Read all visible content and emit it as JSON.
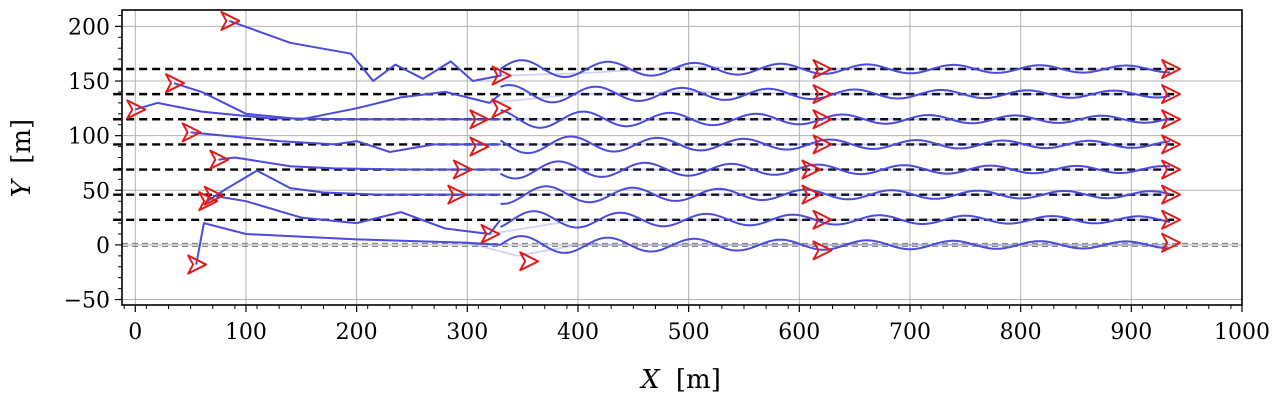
{
  "chart_data": {
    "type": "line",
    "title": "",
    "xlabel_var": "X",
    "xlabel_unit": "[m]",
    "ylabel_var": "Y",
    "ylabel_unit": "[m]",
    "xlim": [
      -12,
      1000
    ],
    "ylim": [
      -55,
      215
    ],
    "xticks": [
      0,
      100,
      200,
      300,
      400,
      500,
      600,
      700,
      800,
      900,
      1000
    ],
    "yticks": [
      -50,
      0,
      50,
      100,
      150,
      200
    ],
    "xtick_labels": [
      "0",
      "100",
      "200",
      "300",
      "400",
      "500",
      "600",
      "700",
      "800",
      "900",
      "1000"
    ],
    "ytick_labels": [
      "−50",
      "0",
      "50",
      "100",
      "150",
      "200"
    ],
    "grid": true,
    "colors": {
      "trajectory": "#4b4bdc",
      "reference": "#000000",
      "marker": "#e01b1b",
      "grid": "#b0b0b0"
    },
    "reference_lines": {
      "style": "dashed",
      "y": [
        161,
        138,
        115,
        92,
        69,
        46,
        23
      ],
      "x_range": [
        -20,
        940
      ]
    },
    "zero_line": {
      "y": 0,
      "style": "double-dashed"
    },
    "series": [
      {
        "y_ref": 161,
        "start": [
          85,
          205
        ],
        "points": [
          [
            85,
            205
          ],
          [
            140,
            185
          ],
          [
            195,
            175
          ],
          [
            215,
            150
          ],
          [
            235,
            165
          ],
          [
            260,
            152
          ],
          [
            285,
            168
          ],
          [
            305,
            150
          ],
          [
            330,
            155
          ],
          [
            400,
            157
          ],
          [
            500,
            163
          ],
          [
            620,
            161
          ],
          [
            700,
            161
          ],
          [
            800,
            161
          ],
          [
            935,
            161
          ]
        ],
        "markers": [
          [
            85,
            205
          ],
          [
            330,
            155
          ],
          [
            620,
            161
          ],
          [
            935,
            161
          ]
        ]
      },
      {
        "y_ref": 138,
        "start": [
          35,
          148
        ],
        "points": [
          [
            35,
            148
          ],
          [
            60,
            140
          ],
          [
            100,
            120
          ],
          [
            150,
            115
          ],
          [
            200,
            125
          ],
          [
            240,
            135
          ],
          [
            280,
            140
          ],
          [
            320,
            130
          ],
          [
            400,
            138
          ],
          [
            500,
            140
          ],
          [
            620,
            138
          ],
          [
            700,
            138
          ],
          [
            800,
            138
          ],
          [
            935,
            138
          ]
        ],
        "markers": [
          [
            35,
            148
          ],
          [
            330,
            125
          ],
          [
            620,
            138
          ],
          [
            935,
            138
          ]
        ]
      },
      {
        "y_ref": 115,
        "start": [
          0,
          124
        ],
        "points": [
          [
            0,
            124
          ],
          [
            20,
            130
          ],
          [
            60,
            122
          ],
          [
            120,
            116
          ],
          [
            200,
            115
          ],
          [
            260,
            115
          ],
          [
            310,
            115
          ],
          [
            400,
            115
          ],
          [
            500,
            115
          ],
          [
            620,
            115
          ],
          [
            700,
            115
          ],
          [
            800,
            115
          ],
          [
            935,
            115
          ]
        ],
        "markers": [
          [
            0,
            124
          ],
          [
            310,
            115
          ],
          [
            620,
            115
          ],
          [
            935,
            115
          ]
        ]
      },
      {
        "y_ref": 92,
        "start": [
          50,
          103
        ],
        "points": [
          [
            50,
            103
          ],
          [
            80,
            100
          ],
          [
            130,
            95
          ],
          [
            180,
            92
          ],
          [
            200,
            95
          ],
          [
            230,
            85
          ],
          [
            270,
            92
          ],
          [
            310,
            92
          ],
          [
            400,
            92
          ],
          [
            500,
            92
          ],
          [
            620,
            92
          ],
          [
            700,
            92
          ],
          [
            800,
            92
          ],
          [
            935,
            92
          ]
        ],
        "markers": [
          [
            50,
            103
          ],
          [
            310,
            90
          ],
          [
            620,
            92
          ],
          [
            935,
            92
          ]
        ]
      },
      {
        "y_ref": 69,
        "start": [
          75,
          78
        ],
        "points": [
          [
            75,
            78
          ],
          [
            90,
            80
          ],
          [
            140,
            72
          ],
          [
            180,
            70
          ],
          [
            240,
            69
          ],
          [
            300,
            69
          ],
          [
            400,
            69
          ],
          [
            500,
            69
          ],
          [
            610,
            69
          ],
          [
            700,
            69
          ],
          [
            800,
            69
          ],
          [
            935,
            69
          ]
        ],
        "markers": [
          [
            75,
            78
          ],
          [
            295,
            69
          ],
          [
            610,
            69
          ],
          [
            935,
            69
          ]
        ]
      },
      {
        "y_ref": 46,
        "start": [
          65,
          40
        ],
        "points": [
          [
            65,
            40
          ],
          [
            80,
            50
          ],
          [
            110,
            68
          ],
          [
            140,
            52
          ],
          [
            170,
            48
          ],
          [
            220,
            46
          ],
          [
            290,
            46
          ],
          [
            400,
            46
          ],
          [
            500,
            46
          ],
          [
            610,
            46
          ],
          [
            700,
            46
          ],
          [
            800,
            46
          ],
          [
            935,
            46
          ]
        ],
        "markers": [
          [
            65,
            40
          ],
          [
            290,
            46
          ],
          [
            610,
            46
          ],
          [
            935,
            46
          ]
        ]
      },
      {
        "y_ref": 23,
        "start": [
          70,
          45
        ],
        "points": [
          [
            70,
            45
          ],
          [
            100,
            40
          ],
          [
            150,
            25
          ],
          [
            200,
            20
          ],
          [
            240,
            30
          ],
          [
            280,
            15
          ],
          [
            320,
            10
          ],
          [
            400,
            23
          ],
          [
            500,
            23
          ],
          [
            620,
            23
          ],
          [
            700,
            23
          ],
          [
            800,
            23
          ],
          [
            935,
            23
          ]
        ],
        "markers": [
          [
            70,
            45
          ],
          [
            320,
            10
          ],
          [
            620,
            23
          ],
          [
            935,
            23
          ]
        ]
      },
      {
        "y_ref": 0,
        "start": [
          55,
          -18
        ],
        "points": [
          [
            55,
            -18
          ],
          [
            62,
            20
          ],
          [
            100,
            10
          ],
          [
            200,
            5
          ],
          [
            300,
            2
          ],
          [
            345,
            -10
          ],
          [
            400,
            0
          ],
          [
            500,
            0
          ],
          [
            620,
            0
          ],
          [
            700,
            0
          ],
          [
            800,
            0
          ],
          [
            935,
            0
          ]
        ],
        "markers": [
          [
            55,
            -18
          ],
          [
            355,
            -15
          ],
          [
            620,
            -5
          ],
          [
            935,
            2
          ]
        ]
      }
    ]
  }
}
